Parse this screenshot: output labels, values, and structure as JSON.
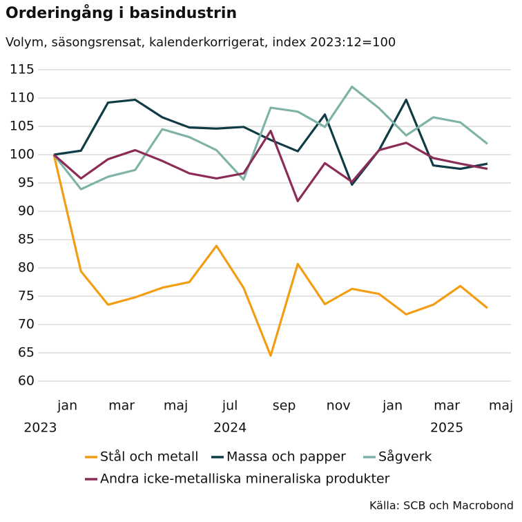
{
  "chart_data": {
    "type": "line",
    "title": "Orderingång i basindustrin",
    "subtitle": "Volym, säsongsrensat, kalenderkorrigerat, index 2023:12=100",
    "source": "Källa: SCB och Macrobond",
    "x": [
      "2023-12",
      "2024-01",
      "2024-02",
      "2024-03",
      "2024-04",
      "2024-05",
      "2024-06",
      "2024-07",
      "2024-08",
      "2024-09",
      "2024-10",
      "2024-11",
      "2024-12",
      "2025-01",
      "2025-02",
      "2025-03",
      "2025-04"
    ],
    "xticks": [
      {
        "value": "2024-01",
        "label": "jan"
      },
      {
        "value": "2024-03",
        "label": "mar"
      },
      {
        "value": "2024-05",
        "label": "maj"
      },
      {
        "value": "2024-07",
        "label": "jul"
      },
      {
        "value": "2024-09",
        "label": "sep"
      },
      {
        "value": "2024-11",
        "label": "nov"
      },
      {
        "value": "2025-01",
        "label": "jan"
      },
      {
        "value": "2025-03",
        "label": "mar"
      },
      {
        "value": "2025-05",
        "label": "maj"
      }
    ],
    "year_labels": [
      {
        "value": "2023-12",
        "label": "2023"
      },
      {
        "value": "2024-07",
        "label": "2024"
      },
      {
        "value": "2025-03",
        "label": "2025"
      }
    ],
    "ylim": [
      60,
      115
    ],
    "yticks": [
      60,
      65,
      70,
      75,
      80,
      85,
      90,
      95,
      100,
      105,
      110,
      115
    ],
    "grid": true,
    "series": [
      {
        "name": "Stål och metall",
        "color": "#f29d12",
        "values": [
          100,
          79.4,
          73.5,
          74.8,
          76.5,
          77.5,
          83.9,
          76.5,
          64.5,
          80.7,
          73.6,
          76.3,
          75.4,
          71.8,
          73.5,
          76.8,
          72.9
        ]
      },
      {
        "name": "Massa och papper",
        "color": "#0e3b45",
        "values": [
          100,
          100.7,
          109.2,
          109.7,
          106.6,
          104.8,
          104.6,
          104.9,
          102.6,
          100.6,
          107.1,
          94.7,
          100.8,
          109.7,
          98.1,
          97.5,
          98.4
        ]
      },
      {
        "name": "Sågverk",
        "color": "#7fb3a7",
        "values": [
          100,
          93.9,
          96.1,
          97.3,
          104.5,
          103.1,
          100.8,
          95.6,
          108.3,
          107.6,
          104.9,
          112.0,
          108.2,
          103.4,
          106.6,
          105.7,
          101.9
        ]
      },
      {
        "name": "Andra icke-metalliska mineraliska produkter",
        "color": "#8b2c57",
        "values": [
          100,
          95.8,
          99.2,
          100.8,
          98.9,
          96.7,
          95.8,
          96.7,
          104.2,
          91.8,
          98.5,
          95.2,
          100.8,
          102.1,
          99.4,
          98.4,
          97.5
        ]
      }
    ]
  }
}
